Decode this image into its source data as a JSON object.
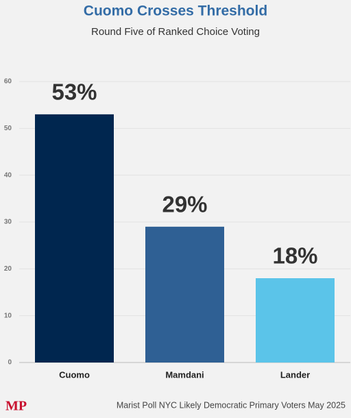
{
  "chart_data": {
    "type": "bar",
    "title": "Cuomo Crosses Threshold",
    "subtitle": "Round Five of Ranked Choice Voting",
    "categories": [
      "Cuomo",
      "Mamdani",
      "Lander"
    ],
    "values": [
      53,
      29,
      18
    ],
    "value_labels": [
      "53%",
      "29%",
      "18%"
    ],
    "colors": [
      "#00264f",
      "#2f6094",
      "#5bc4e9"
    ],
    "ylim": [
      0,
      60
    ],
    "yticks": [
      0,
      10,
      20,
      30,
      40,
      50,
      60
    ],
    "grid": true,
    "source": "Marist Poll NYC Likely Democratic Primary Voters May 2025",
    "logo": "MP"
  }
}
